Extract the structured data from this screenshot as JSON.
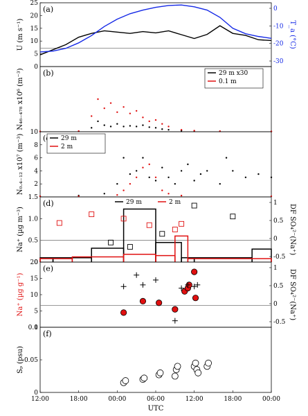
{
  "chart_data": [
    {
      "panel": "(a)",
      "type": "line",
      "ylabel": "U (m s⁻¹)",
      "y2label": "T_a (°C)",
      "ylim": [
        0,
        25
      ],
      "yticks": [
        "0",
        "5",
        "10",
        "15",
        "20",
        "25"
      ],
      "y2lim": [
        -35,
        0
      ],
      "y2ticks": [
        "0",
        "-10",
        "-20",
        "-30"
      ],
      "hline": 7.2,
      "series": [
        {
          "name": "U",
          "color": "#000000",
          "points": [
            [
              12,
              4.6
            ],
            [
              14,
              6.6
            ],
            [
              16,
              8.6
            ],
            [
              18,
              11.5
            ],
            [
              20,
              13
            ],
            [
              22,
              14
            ],
            [
              24,
              13.5
            ],
            [
              26,
              13
            ],
            [
              28,
              13.7
            ],
            [
              30,
              13.2
            ],
            [
              32,
              14
            ],
            [
              34,
              12.5
            ],
            [
              36,
              11
            ],
            [
              38,
              12.6
            ],
            [
              40,
              16
            ],
            [
              42,
              13
            ],
            [
              44,
              12.2
            ],
            [
              46,
              10.5
            ],
            [
              48,
              10.2
            ]
          ]
        },
        {
          "name": "T_a",
          "color": "#1428e6",
          "points": [
            [
              12,
              -27
            ],
            [
              14,
              -26.5
            ],
            [
              16,
              -25
            ],
            [
              18,
              -22
            ],
            [
              20,
              -18
            ],
            [
              22,
              -13
            ],
            [
              24,
              -9
            ],
            [
              26,
              -6
            ],
            [
              28,
              -4
            ],
            [
              30,
              -2.5
            ],
            [
              32,
              -1.5
            ],
            [
              34,
              -1.2
            ],
            [
              36,
              -2.2
            ],
            [
              38,
              -4
            ],
            [
              40,
              -8
            ],
            [
              42,
              -14
            ],
            [
              44,
              -17
            ],
            [
              46,
              -18.5
            ],
            [
              48,
              -19.5
            ]
          ]
        }
      ]
    },
    {
      "panel": "(b)",
      "type": "scatter",
      "ylabel": "N₄₆₋₄₇₈ x10⁶ (m⁻³)",
      "ylim": [
        0,
        5
      ],
      "legend": {
        "position": "top-right",
        "entries": [
          "29 m x30",
          "0.1 m"
        ]
      },
      "series": [
        {
          "name": "29 m x30",
          "color": "#000000",
          "points": [
            [
              12,
              0.02
            ],
            [
              18,
              0.03
            ],
            [
              20,
              0.3
            ],
            [
              21,
              0.8
            ],
            [
              22,
              0.5
            ],
            [
              23,
              0.4
            ],
            [
              24,
              0.6
            ],
            [
              25,
              0.4
            ],
            [
              26,
              0.45
            ],
            [
              27,
              0.4
            ],
            [
              28,
              0.5
            ],
            [
              29,
              0.35
            ],
            [
              30,
              0.3
            ],
            [
              31,
              0.2
            ],
            [
              32,
              0.15
            ],
            [
              34,
              0.08
            ],
            [
              36,
              0.05
            ],
            [
              40,
              0.03
            ],
            [
              48,
              0.02
            ]
          ]
        },
        {
          "name": "0.1 m",
          "color": "#e01010",
          "points": [
            [
              12,
              0.02
            ],
            [
              18,
              0.05
            ],
            [
              20,
              1.2
            ],
            [
              21,
              2.5
            ],
            [
              22,
              1.8
            ],
            [
              23,
              2.2
            ],
            [
              24,
              1.5
            ],
            [
              25,
              1.9
            ],
            [
              26,
              1.4
            ],
            [
              27,
              1.6
            ],
            [
              28,
              1.1
            ],
            [
              29,
              0.8
            ],
            [
              30,
              0.9
            ],
            [
              31,
              0.6
            ],
            [
              32,
              0.4
            ],
            [
              34,
              0.15
            ],
            [
              36,
              0.08
            ],
            [
              40,
              0.04
            ],
            [
              48,
              0.02
            ]
          ]
        }
      ]
    },
    {
      "panel": "(c)",
      "type": "scatter",
      "ylabel": "N₀.₄₋₁₂ x10⁷ (m⁻³)",
      "ylim": [
        0,
        10
      ],
      "yticks": [
        "2",
        "4",
        "6",
        "8",
        "10"
      ],
      "legend": {
        "position": "top-left",
        "entries": [
          "29 m",
          "2 m"
        ]
      },
      "series": [
        {
          "name": "29 m",
          "color": "#000000",
          "points": [
            [
              12,
              0.1
            ],
            [
              18,
              0.2
            ],
            [
              22,
              0.5
            ],
            [
              24,
              2
            ],
            [
              25,
              6
            ],
            [
              26,
              3.5
            ],
            [
              27,
              4
            ],
            [
              28,
              6
            ],
            [
              29,
              3
            ],
            [
              30,
              2.5
            ],
            [
              31,
              4.5
            ],
            [
              32,
              3
            ],
            [
              33,
              2
            ],
            [
              34,
              4
            ],
            [
              35,
              5
            ],
            [
              36,
              2.5
            ],
            [
              37,
              3.5
            ],
            [
              38,
              4
            ],
            [
              40,
              2
            ],
            [
              41,
              6
            ],
            [
              42,
              4
            ],
            [
              44,
              3
            ],
            [
              46,
              3.5
            ],
            [
              48,
              3
            ]
          ]
        },
        {
          "name": "2 m",
          "color": "#e01010",
          "points": [
            [
              12,
              0.1
            ],
            [
              18,
              0.1
            ],
            [
              24,
              0.3
            ],
            [
              25,
              1
            ],
            [
              26,
              2
            ],
            [
              27,
              3
            ],
            [
              28,
              4.5
            ],
            [
              29,
              5
            ],
            [
              30,
              3
            ],
            [
              31,
              1
            ],
            [
              32,
              0.5
            ],
            [
              34,
              0.2
            ],
            [
              48,
              0.1
            ]
          ]
        }
      ]
    },
    {
      "panel": "(d)",
      "type": "bar",
      "ylabel": "Na⁺ (µg m⁻³)",
      "y2label": "DF SO₄²⁻(Na⁺)",
      "ylim": [
        0,
        1.5
      ],
      "yticks": [
        "0",
        "0.5",
        "1.0",
        "1.5"
      ],
      "y2ticks": [
        "1",
        "0.5",
        "0",
        "-0.5"
      ],
      "hline": 0.5,
      "legend": {
        "position": "top",
        "entries": [
          "29 m",
          "2 m"
        ]
      },
      "series": [
        {
          "name": "29 m",
          "color": "#000000",
          "steps": [
            [
              12,
              14,
              0.1
            ],
            [
              14,
              20,
              0.1
            ],
            [
              20,
              25,
              0.32
            ],
            [
              25,
              30,
              1.22
            ],
            [
              30,
              34,
              0.45
            ],
            [
              34,
              36,
              0.1
            ],
            [
              36,
              45,
              0.1
            ],
            [
              45,
              48,
              0.3
            ]
          ]
        },
        {
          "name": "2 m",
          "color": "#e01010",
          "steps": [
            [
              12,
              17,
              0.08
            ],
            [
              17,
              25,
              0.12
            ],
            [
              25,
              30,
              0.18
            ],
            [
              30,
              33,
              0.15
            ],
            [
              33,
              35,
              0.6
            ],
            [
              35,
              48,
              0.08
            ]
          ]
        }
      ],
      "markers": [
        {
          "color": "#000000",
          "points": [
            [
              23,
              0.45
            ],
            [
              26,
              0.35
            ],
            [
              31,
              0.65
            ],
            [
              36,
              1.3
            ],
            [
              42,
              1.05
            ]
          ]
        },
        {
          "color": "#e01010",
          "points": [
            [
              15,
              0.9
            ],
            [
              20,
              1.1
            ],
            [
              25,
              1.0
            ],
            [
              29,
              0.85
            ],
            [
              33,
              0.75
            ],
            [
              34,
              0.88
            ]
          ]
        }
      ]
    },
    {
      "panel": "(e)",
      "type": "scatter",
      "ylabel": "Na⁺ (µg g⁻¹)",
      "y2label": "DF SO₄²⁻(Na⁺)",
      "ylim": [
        0,
        20
      ],
      "yticks": [
        "0",
        "5",
        "10",
        "15",
        "20"
      ],
      "y2ticks": [
        "1",
        "0.5",
        "0",
        "-0.5"
      ],
      "hline": 6.7,
      "series": [
        {
          "name": "Na+ (filled circles)",
          "color": "#e01010",
          "points": [
            [
              25,
              4.5
            ],
            [
              28,
              8
            ],
            [
              30.5,
              7.5
            ],
            [
              33,
              5.5
            ],
            [
              34.5,
              11
            ],
            [
              35,
              12
            ],
            [
              35.2,
              13
            ],
            [
              36,
              17
            ],
            [
              36.2,
              9
            ]
          ]
        },
        {
          "name": "DF (plus)",
          "color": "#000000",
          "points": [
            [
              25,
              12.5
            ],
            [
              27,
              16
            ],
            [
              28,
              13
            ],
            [
              30,
              14.5
            ],
            [
              33,
              2
            ],
            [
              34,
              12
            ],
            [
              35,
              13
            ],
            [
              36,
              12.5
            ],
            [
              36.5,
              13
            ]
          ]
        }
      ]
    },
    {
      "panel": "(f)",
      "type": "scatter",
      "ylabel": "Sₚ (psu)",
      "ylim": [
        0,
        0.1
      ],
      "yticks": [
        "0",
        "0.05",
        "0.1"
      ],
      "xticks": [
        "12:00",
        "18:00",
        "00:00",
        "06:00",
        "12:00",
        "18:00",
        "00:00"
      ],
      "xlabel": "UTC",
      "series": [
        {
          "name": "S_p",
          "color": "#000000",
          "points": [
            [
              25,
              0.015
            ],
            [
              25.3,
              0.018
            ],
            [
              28,
              0.02
            ],
            [
              28.2,
              0.022
            ],
            [
              30.5,
              0.027
            ],
            [
              30.7,
              0.03
            ],
            [
              33,
              0.025
            ],
            [
              33.2,
              0.035
            ],
            [
              33.4,
              0.04
            ],
            [
              36,
              0.04
            ],
            [
              36.2,
              0.045
            ],
            [
              36.4,
              0.035
            ],
            [
              36.6,
              0.03
            ],
            [
              38,
              0.04
            ],
            [
              38.2,
              0.045
            ]
          ]
        }
      ]
    }
  ]
}
